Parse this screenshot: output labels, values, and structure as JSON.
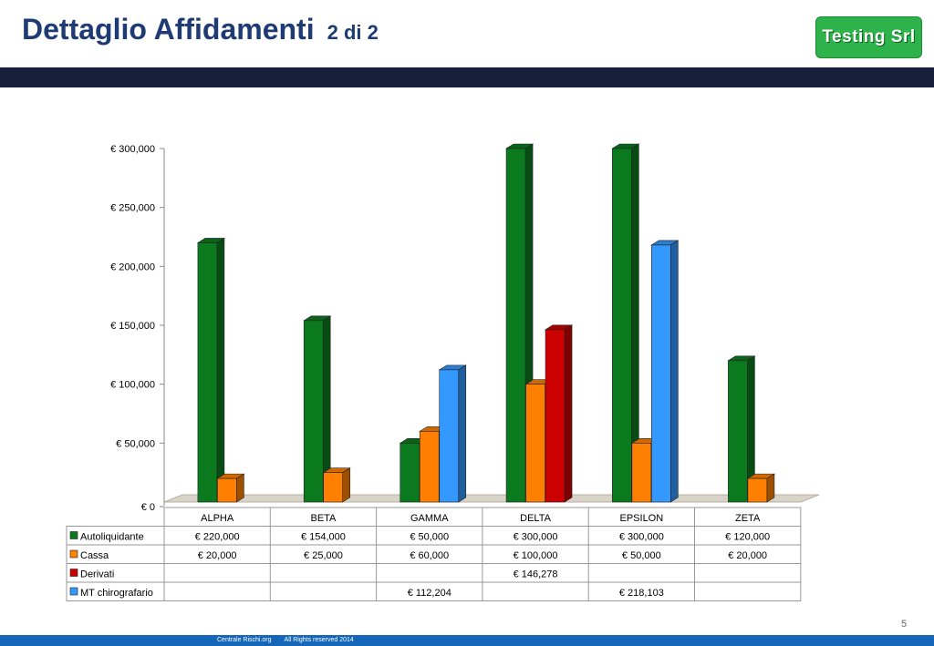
{
  "header": {
    "title": "Dettaglio Affidamenti",
    "subtitle": "2 di 2",
    "logo_text": "Testing Srl"
  },
  "footer": {
    "left": "Centrale Rischi.org",
    "right": "All Rights reserved 2014",
    "page": "5"
  },
  "colors": {
    "title": "#1f3b73",
    "topbar": "#17203a",
    "bottombar": "#1466b8",
    "logo": "#2db34a"
  },
  "chart_data": {
    "type": "bar",
    "categories": [
      "ALPHA",
      "BETA",
      "GAMMA",
      "DELTA",
      "EPSILON",
      "ZETA"
    ],
    "series": [
      {
        "name": "Autoliquidante",
        "color": "#0b7a1e",
        "values": [
          220000,
          154000,
          50000,
          300000,
          300000,
          120000
        ],
        "labels": [
          "€ 220,000",
          "€ 154,000",
          "€ 50,000",
          "€ 300,000",
          "€ 300,000",
          "€ 120,000"
        ]
      },
      {
        "name": "Cassa",
        "color": "#ff7f00",
        "values": [
          20000,
          25000,
          60000,
          100000,
          50000,
          20000
        ],
        "labels": [
          "€ 20,000",
          "€ 25,000",
          "€ 60,000",
          "€ 100,000",
          "€ 50,000",
          "€ 20,000"
        ]
      },
      {
        "name": "Derivati",
        "color": "#cc0000",
        "values": [
          null,
          null,
          null,
          146278,
          null,
          null
        ],
        "labels": [
          "",
          "",
          "",
          "€ 146,278",
          "",
          ""
        ]
      },
      {
        "name": "MT chirografario",
        "color": "#3399ff",
        "values": [
          null,
          null,
          112204,
          null,
          218103,
          null
        ],
        "labels": [
          "",
          "",
          "€ 112,204",
          "",
          "€ 218,103",
          ""
        ]
      }
    ],
    "yticks": [
      0,
      50000,
      100000,
      150000,
      200000,
      250000,
      300000
    ],
    "ytick_labels": [
      "€ 0",
      "€ 50,000",
      "€ 100,000",
      "€ 150,000",
      "€ 200,000",
      "€ 250,000",
      "€ 300,000"
    ],
    "ylim": [
      0,
      300000
    ],
    "legend": "data-table",
    "grid": false
  }
}
